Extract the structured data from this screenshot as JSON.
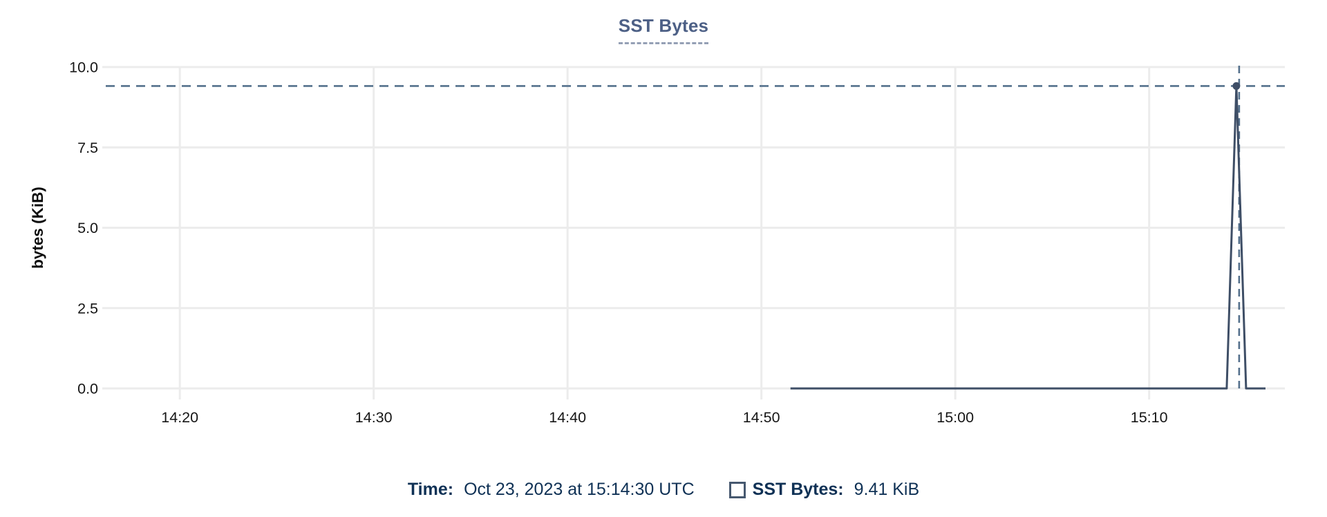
{
  "title": "SST Bytes",
  "colors": {
    "title": "#4d6086",
    "series": "#3e4e66",
    "crosshair": "#54708c",
    "grid": "#ececec",
    "tick_text": "#161616",
    "axis_title_text": "#0b0b0b",
    "footer_text": "#0f3155",
    "legend_marker_border": "#46586f"
  },
  "chart_data": {
    "type": "line",
    "title": "SST Bytes",
    "xlabel": "",
    "ylabel": "bytes (KiB)",
    "ylim": [
      0,
      10
    ],
    "y_ticks": [
      0.0,
      2.5,
      5.0,
      7.5,
      10.0
    ],
    "y_tick_labels": [
      "0.0",
      "2.5",
      "5.0",
      "7.5",
      "10.0"
    ],
    "x_ticks": [
      "14:20",
      "14:30",
      "14:40",
      "14:50",
      "15:00",
      "15:10"
    ],
    "x_range": [
      "14:16:00",
      "15:17:00"
    ],
    "grid": true,
    "legend_position": "bottom",
    "series": [
      {
        "name": "SST Bytes",
        "points": [
          [
            "14:51:30",
            0
          ],
          [
            "15:14:00",
            0
          ],
          [
            "15:14:30",
            9.41
          ],
          [
            "15:15:00",
            0
          ],
          [
            "15:16:00",
            0
          ]
        ]
      }
    ],
    "highlight_point": {
      "time": "15:14:30",
      "value": 9.41
    },
    "crosshair": {
      "x": "15:14:30",
      "y": 9.41
    }
  },
  "footer": {
    "time_label": "Time:",
    "time_value": "Oct 23, 2023 at 15:14:30 UTC",
    "series_label": "SST Bytes:",
    "series_value": "9.41 KiB"
  }
}
